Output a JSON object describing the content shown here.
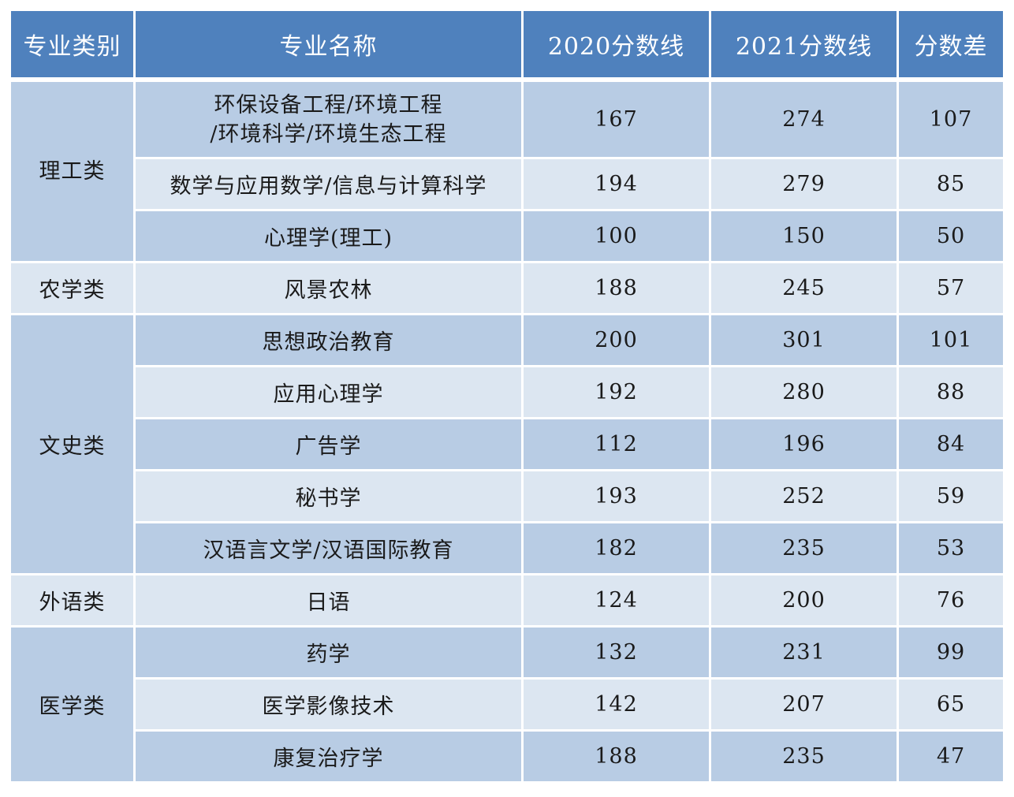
{
  "headers": {
    "category": "专业类别",
    "major": "专业名称",
    "score_2020": "2020分数线",
    "score_2021": "2021分数线",
    "diff": "分数差"
  },
  "groups": [
    {
      "category": "理工类",
      "rows": [
        {
          "major_lines": [
            "环保设备工程/环境工程",
            "/环境科学/环境生态工程"
          ],
          "s2020": "167",
          "s2021": "274",
          "diff": "107"
        },
        {
          "major": "数学与应用数学/信息与计算科学",
          "s2020": "194",
          "s2021": "279",
          "diff": "85"
        },
        {
          "major": "心理学(理工)",
          "s2020": "100",
          "s2021": "150",
          "diff": "50"
        }
      ]
    },
    {
      "category": "农学类",
      "rows": [
        {
          "major": "风景农林",
          "s2020": "188",
          "s2021": "245",
          "diff": "57"
        }
      ]
    },
    {
      "category": "文史类",
      "rows": [
        {
          "major": "思想政治教育",
          "s2020": "200",
          "s2021": "301",
          "diff": "101"
        },
        {
          "major": "应用心理学",
          "s2020": "192",
          "s2021": "280",
          "diff": "88"
        },
        {
          "major": "广告学",
          "s2020": "112",
          "s2021": "196",
          "diff": "84"
        },
        {
          "major": "秘书学",
          "s2020": "193",
          "s2021": "252",
          "diff": "59"
        },
        {
          "major": "汉语言文学/汉语国际教育",
          "s2020": "182",
          "s2021": "235",
          "diff": "53"
        }
      ]
    },
    {
      "category": "外语类",
      "rows": [
        {
          "major": "日语",
          "s2020": "124",
          "s2021": "200",
          "diff": "76"
        }
      ]
    },
    {
      "category": "医学类",
      "rows": [
        {
          "major": "药学",
          "s2020": "132",
          "s2021": "231",
          "diff": "99"
        },
        {
          "major": "医学影像技术",
          "s2020": "142",
          "s2021": "207",
          "diff": "65"
        },
        {
          "major": "康复治疗学",
          "s2020": "188",
          "s2021": "235",
          "diff": "47"
        }
      ]
    }
  ],
  "colors": {
    "header_bg": "#4f81bd",
    "row_dark": "#b8cce4",
    "row_light": "#dce6f1"
  }
}
